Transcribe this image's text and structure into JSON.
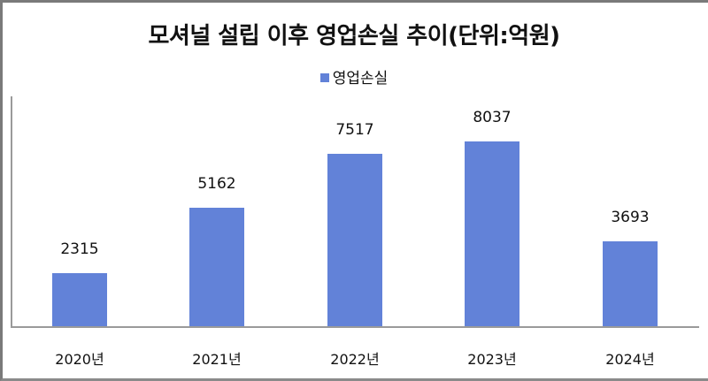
{
  "chart_data": {
    "type": "bar",
    "title": "모셔널 설립 이후 영업손실 추이(단위:억원)",
    "categories": [
      "2020년",
      "2021년",
      "2022년",
      "2023년",
      "2024년"
    ],
    "series": [
      {
        "name": "영업손실",
        "values": [
          2315,
          5162,
          7517,
          8037,
          3693
        ],
        "color": "#6282D8"
      }
    ],
    "xlabel": "",
    "ylabel": "",
    "ylim": [
      0,
      9000
    ],
    "grid": false,
    "legend_position": "top",
    "data_labels": true
  },
  "display": {
    "title": "모셔널 설립 이후 영업손실 추이(단위:억원)",
    "legend_label": "영업손실",
    "bar_color": "#6282D8",
    "value_labels": [
      "2315",
      "5162",
      "7517",
      "8037",
      "3693"
    ],
    "categories": [
      "2020년",
      "2021년",
      "2022년",
      "2023년",
      "2024년"
    ]
  }
}
